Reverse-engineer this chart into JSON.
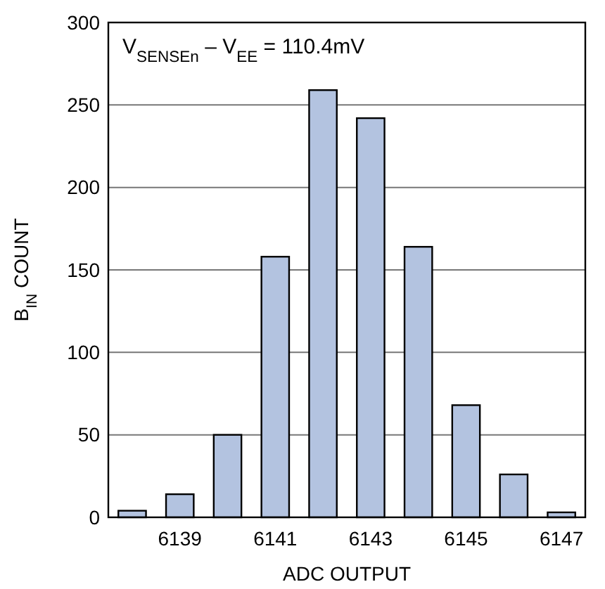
{
  "chart_data": {
    "type": "bar",
    "categories": [
      null,
      "6139",
      null,
      "6141",
      null,
      "6143",
      null,
      "6145",
      null,
      "6147"
    ],
    "values": [
      4,
      14,
      50,
      158,
      259,
      242,
      164,
      68,
      26,
      3
    ],
    "color": "#b3c3e0",
    "xlabel": "ADC OUTPUT",
    "ylabel": "B$_{IN}$ COUNT",
    "ylim": [
      0,
      300
    ],
    "yticks": [
      0,
      50,
      100,
      150,
      200,
      250,
      300
    ],
    "grid": "y",
    "annotations": [
      "V$_{SENSEn}$ – V$_{EE}$ = 110.4mV"
    ]
  }
}
